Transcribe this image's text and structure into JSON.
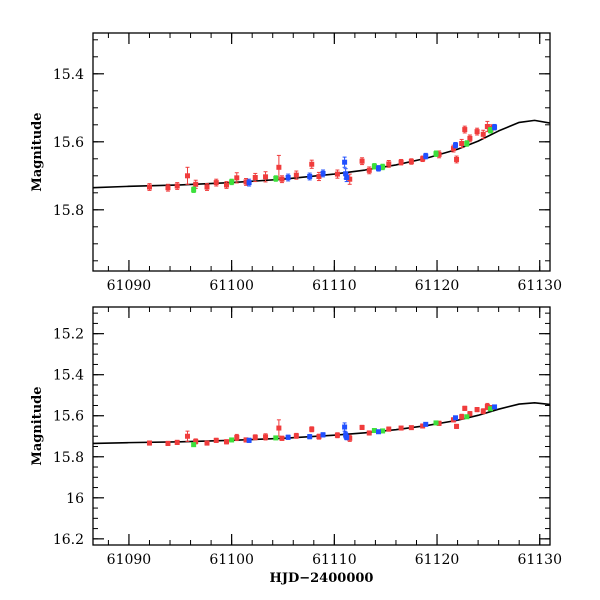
{
  "colors": {
    "red": "#f03c3c",
    "green": "#3ce03c",
    "blue": "#2050ff",
    "model": "#000000",
    "frame": "#000000"
  },
  "chart_data": [
    {
      "type": "scatter",
      "panel": "top",
      "xlabel": "",
      "ylabel": "Magnitude",
      "xlim": [
        61086.5,
        61131
      ],
      "ylim": [
        15.98,
        15.28
      ],
      "x_ticks": [
        61090,
        61100,
        61110,
        61120,
        61130
      ],
      "x_tick_labels": [
        "61090",
        "61100",
        "61110",
        "61120",
        "61130"
      ],
      "y_ticks": [
        15.4,
        15.6,
        15.8
      ],
      "y_tick_labels": [
        "15.4",
        "15.6",
        "15.8"
      ],
      "model_curve": {
        "name": "model",
        "x": [
          61086.5,
          61090,
          61095,
          61100,
          61105,
          61110,
          61113,
          61116,
          61119,
          61122,
          61124,
          61126,
          61128,
          61129.5,
          61131
        ],
        "y": [
          15.735,
          15.731,
          15.727,
          15.72,
          15.71,
          15.695,
          15.683,
          15.668,
          15.648,
          15.622,
          15.598,
          15.568,
          15.543,
          15.537,
          15.545
        ]
      },
      "series": [
        {
          "name": "red",
          "points": [
            {
              "x": 61092.0,
              "y": 15.733,
              "err": 0.01
            },
            {
              "x": 61093.8,
              "y": 15.735,
              "err": 0.01
            },
            {
              "x": 61094.7,
              "y": 15.73,
              "err": 0.01
            },
            {
              "x": 61095.7,
              "y": 15.7,
              "err": 0.025
            },
            {
              "x": 61096.5,
              "y": 15.725,
              "err": 0.012
            },
            {
              "x": 61097.6,
              "y": 15.733,
              "err": 0.01
            },
            {
              "x": 61098.5,
              "y": 15.72,
              "err": 0.01
            },
            {
              "x": 61099.5,
              "y": 15.727,
              "err": 0.01
            },
            {
              "x": 61100.5,
              "y": 15.706,
              "err": 0.015
            },
            {
              "x": 61101.4,
              "y": 15.718,
              "err": 0.01
            },
            {
              "x": 61102.3,
              "y": 15.705,
              "err": 0.012
            },
            {
              "x": 61103.3,
              "y": 15.703,
              "err": 0.015
            },
            {
              "x": 61104.6,
              "y": 15.675,
              "err": 0.035
            },
            {
              "x": 61104.9,
              "y": 15.71,
              "err": 0.01
            },
            {
              "x": 61106.3,
              "y": 15.698,
              "err": 0.012
            },
            {
              "x": 61107.8,
              "y": 15.666,
              "err": 0.012
            },
            {
              "x": 61108.5,
              "y": 15.702,
              "err": 0.012
            },
            {
              "x": 61110.3,
              "y": 15.695,
              "err": 0.012
            },
            {
              "x": 61111.5,
              "y": 15.71,
              "err": 0.015
            },
            {
              "x": 61112.7,
              "y": 15.657,
              "err": 0.01
            },
            {
              "x": 61113.4,
              "y": 15.684,
              "err": 0.01
            },
            {
              "x": 61115.3,
              "y": 15.665,
              "err": 0.01
            },
            {
              "x": 61116.5,
              "y": 15.66,
              "err": 0.008
            },
            {
              "x": 61117.5,
              "y": 15.658,
              "err": 0.008
            },
            {
              "x": 61118.6,
              "y": 15.65,
              "err": 0.008
            },
            {
              "x": 61120.2,
              "y": 15.637,
              "err": 0.01
            },
            {
              "x": 61121.6,
              "y": 15.62,
              "err": 0.01
            },
            {
              "x": 61121.9,
              "y": 15.652,
              "err": 0.01
            },
            {
              "x": 61122.4,
              "y": 15.605,
              "err": 0.012
            },
            {
              "x": 61122.7,
              "y": 15.564,
              "err": 0.01
            },
            {
              "x": 61123.2,
              "y": 15.59,
              "err": 0.01
            },
            {
              "x": 61123.9,
              "y": 15.57,
              "err": 0.01
            },
            {
              "x": 61124.5,
              "y": 15.578,
              "err": 0.012
            },
            {
              "x": 61124.9,
              "y": 15.555,
              "err": 0.015
            },
            {
              "x": 61125.3,
              "y": 15.56,
              "err": 0.01
            }
          ]
        },
        {
          "name": "green",
          "points": [
            {
              "x": 61096.3,
              "y": 15.741,
              "err": 0.008
            },
            {
              "x": 61100.0,
              "y": 15.718,
              "err": 0.008
            },
            {
              "x": 61104.3,
              "y": 15.708,
              "err": 0.008
            },
            {
              "x": 61113.9,
              "y": 15.672,
              "err": 0.008
            },
            {
              "x": 61114.7,
              "y": 15.674,
              "err": 0.008
            },
            {
              "x": 61119.9,
              "y": 15.635,
              "err": 0.008
            },
            {
              "x": 61122.9,
              "y": 15.605,
              "err": 0.008
            },
            {
              "x": 61125.2,
              "y": 15.566,
              "err": 0.008
            }
          ]
        },
        {
          "name": "blue",
          "points": [
            {
              "x": 61101.7,
              "y": 15.72,
              "err": 0.01
            },
            {
              "x": 61105.5,
              "y": 15.705,
              "err": 0.01
            },
            {
              "x": 61107.6,
              "y": 15.702,
              "err": 0.01
            },
            {
              "x": 61108.9,
              "y": 15.693,
              "err": 0.01
            },
            {
              "x": 61111.0,
              "y": 15.66,
              "err": 0.015
            },
            {
              "x": 61111.1,
              "y": 15.694,
              "err": 0.015
            },
            {
              "x": 61111.2,
              "y": 15.705,
              "err": 0.012
            },
            {
              "x": 61114.3,
              "y": 15.678,
              "err": 0.008
            },
            {
              "x": 61118.9,
              "y": 15.642,
              "err": 0.008
            },
            {
              "x": 61121.8,
              "y": 15.61,
              "err": 0.008
            },
            {
              "x": 61125.6,
              "y": 15.557,
              "err": 0.008
            }
          ]
        }
      ]
    },
    {
      "type": "scatter",
      "panel": "bottom",
      "xlabel": "HJD−2400000",
      "ylabel": "Magnitude",
      "xlim": [
        61086.5,
        61131
      ],
      "ylim": [
        16.23,
        15.07
      ],
      "x_ticks": [
        61090,
        61100,
        61110,
        61120,
        61130
      ],
      "x_tick_labels": [
        "61090",
        "61100",
        "61110",
        "61120",
        "61130"
      ],
      "y_ticks": [
        15.2,
        15.4,
        15.6,
        15.8,
        16.0,
        16.2
      ],
      "y_tick_labels": [
        "15.2",
        "15.4",
        "15.6",
        "15.8",
        "16",
        "16.2"
      ],
      "model_curve": {
        "name": "model",
        "x": [
          61086.5,
          61090,
          61095,
          61100,
          61105,
          61110,
          61113,
          61116,
          61119,
          61122,
          61124,
          61126,
          61128,
          61129.5,
          61131
        ],
        "y": [
          15.735,
          15.731,
          15.727,
          15.72,
          15.71,
          15.695,
          15.683,
          15.668,
          15.648,
          15.622,
          15.598,
          15.568,
          15.543,
          15.537,
          15.545
        ]
      },
      "series": [
        {
          "name": "red",
          "points": [
            {
              "x": 61092.0,
              "y": 15.733,
              "err": 0.01
            },
            {
              "x": 61093.8,
              "y": 15.735,
              "err": 0.01
            },
            {
              "x": 61094.7,
              "y": 15.73,
              "err": 0.01
            },
            {
              "x": 61095.7,
              "y": 15.7,
              "err": 0.025
            },
            {
              "x": 61096.5,
              "y": 15.725,
              "err": 0.012
            },
            {
              "x": 61097.6,
              "y": 15.733,
              "err": 0.01
            },
            {
              "x": 61098.5,
              "y": 15.72,
              "err": 0.01
            },
            {
              "x": 61099.5,
              "y": 15.727,
              "err": 0.01
            },
            {
              "x": 61100.5,
              "y": 15.706,
              "err": 0.015
            },
            {
              "x": 61101.4,
              "y": 15.718,
              "err": 0.01
            },
            {
              "x": 61102.3,
              "y": 15.705,
              "err": 0.012
            },
            {
              "x": 61103.3,
              "y": 15.703,
              "err": 0.015
            },
            {
              "x": 61104.6,
              "y": 15.66,
              "err": 0.04
            },
            {
              "x": 61104.9,
              "y": 15.71,
              "err": 0.01
            },
            {
              "x": 61106.3,
              "y": 15.698,
              "err": 0.012
            },
            {
              "x": 61107.8,
              "y": 15.666,
              "err": 0.012
            },
            {
              "x": 61108.5,
              "y": 15.702,
              "err": 0.012
            },
            {
              "x": 61110.3,
              "y": 15.695,
              "err": 0.012
            },
            {
              "x": 61111.5,
              "y": 15.71,
              "err": 0.015
            },
            {
              "x": 61112.7,
              "y": 15.657,
              "err": 0.01
            },
            {
              "x": 61113.4,
              "y": 15.684,
              "err": 0.01
            },
            {
              "x": 61115.3,
              "y": 15.665,
              "err": 0.01
            },
            {
              "x": 61116.5,
              "y": 15.66,
              "err": 0.008
            },
            {
              "x": 61117.5,
              "y": 15.658,
              "err": 0.008
            },
            {
              "x": 61118.6,
              "y": 15.65,
              "err": 0.008
            },
            {
              "x": 61120.2,
              "y": 15.637,
              "err": 0.01
            },
            {
              "x": 61121.6,
              "y": 15.62,
              "err": 0.01
            },
            {
              "x": 61121.9,
              "y": 15.652,
              "err": 0.01
            },
            {
              "x": 61122.4,
              "y": 15.605,
              "err": 0.012
            },
            {
              "x": 61122.7,
              "y": 15.564,
              "err": 0.01
            },
            {
              "x": 61123.2,
              "y": 15.59,
              "err": 0.01
            },
            {
              "x": 61123.9,
              "y": 15.57,
              "err": 0.01
            },
            {
              "x": 61124.5,
              "y": 15.578,
              "err": 0.012
            },
            {
              "x": 61124.9,
              "y": 15.555,
              "err": 0.015
            },
            {
              "x": 61125.3,
              "y": 15.56,
              "err": 0.01
            }
          ]
        },
        {
          "name": "green",
          "points": [
            {
              "x": 61096.3,
              "y": 15.741,
              "err": 0.008
            },
            {
              "x": 61100.0,
              "y": 15.718,
              "err": 0.008
            },
            {
              "x": 61104.3,
              "y": 15.708,
              "err": 0.008
            },
            {
              "x": 61113.9,
              "y": 15.672,
              "err": 0.008
            },
            {
              "x": 61114.7,
              "y": 15.674,
              "err": 0.008
            },
            {
              "x": 61119.9,
              "y": 15.635,
              "err": 0.008
            },
            {
              "x": 61122.9,
              "y": 15.605,
              "err": 0.008
            },
            {
              "x": 61125.2,
              "y": 15.566,
              "err": 0.008
            }
          ]
        },
        {
          "name": "blue",
          "points": [
            {
              "x": 61101.7,
              "y": 15.72,
              "err": 0.01
            },
            {
              "x": 61105.5,
              "y": 15.705,
              "err": 0.01
            },
            {
              "x": 61107.6,
              "y": 15.702,
              "err": 0.01
            },
            {
              "x": 61108.9,
              "y": 15.693,
              "err": 0.01
            },
            {
              "x": 61111.0,
              "y": 15.655,
              "err": 0.02
            },
            {
              "x": 61111.1,
              "y": 15.694,
              "err": 0.015
            },
            {
              "x": 61111.2,
              "y": 15.705,
              "err": 0.012
            },
            {
              "x": 61114.3,
              "y": 15.678,
              "err": 0.008
            },
            {
              "x": 61118.9,
              "y": 15.642,
              "err": 0.008
            },
            {
              "x": 61121.8,
              "y": 15.61,
              "err": 0.008
            },
            {
              "x": 61125.6,
              "y": 15.557,
              "err": 0.008
            }
          ]
        }
      ]
    }
  ]
}
